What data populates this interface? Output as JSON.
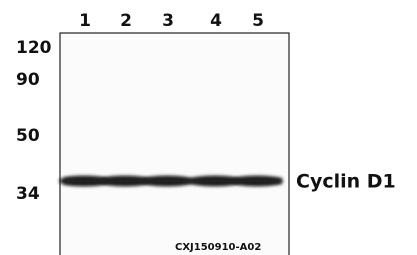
{
  "lanes": [
    "1",
    "2",
    "3",
    "4",
    "5"
  ],
  "markers": [
    "120",
    "90",
    "50",
    "34"
  ],
  "band_label": "Cyclin D1",
  "code": "CXJ150910-A02"
}
